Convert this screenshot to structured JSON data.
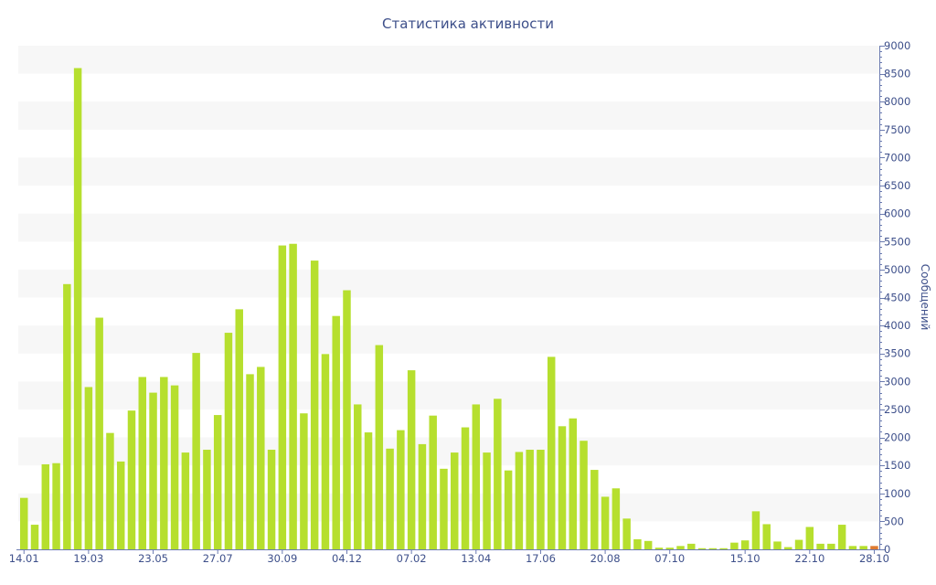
{
  "chart_data": {
    "type": "bar",
    "title": "Статистика активности",
    "ylabel": "Сообщений",
    "ylim": [
      0,
      9000
    ],
    "y_ticks": [
      0,
      500,
      1000,
      1500,
      2000,
      2500,
      3000,
      3500,
      4000,
      4500,
      5000,
      5500,
      6000,
      6500,
      7000,
      7500,
      8000,
      8500,
      9000
    ],
    "y_axis_side": "right",
    "x_tick_labels": [
      {
        "label": "14.01",
        "index": 0
      },
      {
        "label": "19.03",
        "index": 6
      },
      {
        "label": "23.05",
        "index": 12
      },
      {
        "label": "27.07",
        "index": 18
      },
      {
        "label": "30.09",
        "index": 24
      },
      {
        "label": "04.12",
        "index": 30
      },
      {
        "label": "07.02",
        "index": 36
      },
      {
        "label": "13.04",
        "index": 42
      },
      {
        "label": "17.06",
        "index": 48
      },
      {
        "label": "20.08",
        "index": 54
      },
      {
        "label": "07.10",
        "index": 60
      },
      {
        "label": "15.10",
        "index": 67
      },
      {
        "label": "22.10",
        "index": 73
      },
      {
        "label": "28.10",
        "index": 79
      }
    ],
    "values": [
      920,
      440,
      1520,
      1540,
      4740,
      8600,
      2900,
      4140,
      2080,
      1570,
      2480,
      3080,
      2800,
      3080,
      2930,
      1730,
      3510,
      1780,
      2400,
      3870,
      4290,
      3130,
      3260,
      1780,
      5430,
      5460,
      2430,
      5160,
      3490,
      4170,
      4630,
      2590,
      2090,
      3650,
      1800,
      2130,
      3200,
      1880,
      2390,
      1440,
      1730,
      2180,
      2590,
      1730,
      2690,
      1410,
      1740,
      1780,
      1780,
      3440,
      2200,
      2340,
      1940,
      1420,
      940,
      1090,
      550,
      180,
      150,
      30,
      30,
      60,
      100,
      20,
      20,
      20,
      120,
      160,
      680,
      450,
      140,
      40,
      170,
      400,
      100,
      100,
      440,
      60,
      60
    ],
    "last_value": 60,
    "colors": {
      "bar": "#b6df2e",
      "last_bar": "#e07b30",
      "text": "#3d4f8a",
      "axis": "#6b7bb0",
      "band": "#f7f7f7"
    },
    "grid": "alternating-bands",
    "legend": "none"
  }
}
